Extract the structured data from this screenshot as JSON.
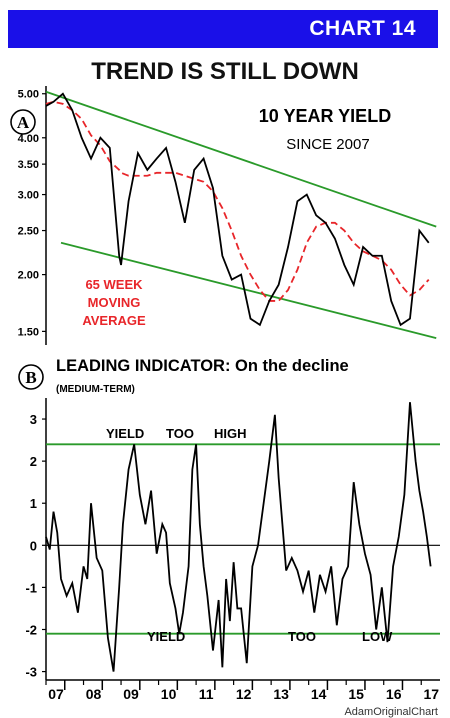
{
  "header": {
    "badge": "CHART 14",
    "title": "TREND IS STILL DOWN"
  },
  "colors": {
    "banner": "#1a10e8",
    "yield_line": "#000000",
    "moving_average": "#e8262a",
    "trend_lines": "#2a9a2a",
    "annotation_red": "#e8262a"
  },
  "chart_data": [
    {
      "type": "line",
      "panel_marker": "A",
      "title": "10 YEAR YIELD",
      "subtitle": "SINCE 2007",
      "yscale": "log",
      "ylim": [
        1.4,
        5.2
      ],
      "yticks": [
        "5.00",
        "4.00",
        "3.50",
        "3.00",
        "2.50",
        "2.00",
        "1.50"
      ],
      "xlim": [
        2007,
        2017.5
      ],
      "x": [
        2007.0,
        2007.2,
        2007.45,
        2007.7,
        2007.95,
        2008.2,
        2008.45,
        2008.7,
        2008.95,
        2009.0,
        2009.2,
        2009.45,
        2009.7,
        2009.95,
        2010.2,
        2010.45,
        2010.7,
        2010.95,
        2011.2,
        2011.45,
        2011.7,
        2011.95,
        2012.2,
        2012.45,
        2012.7,
        2012.95,
        2013.2,
        2013.45,
        2013.7,
        2013.95,
        2014.2,
        2014.45,
        2014.7,
        2014.95,
        2015.2,
        2015.45,
        2015.7,
        2015.95,
        2016.2,
        2016.45,
        2016.7,
        2016.95,
        2017.2
      ],
      "series": [
        {
          "values": [
            4.7,
            4.8,
            5.0,
            4.6,
            4.0,
            3.6,
            4.0,
            3.8,
            2.2,
            2.1,
            2.9,
            3.7,
            3.4,
            3.6,
            3.8,
            3.2,
            2.6,
            3.4,
            3.6,
            3.1,
            2.2,
            1.95,
            2.0,
            1.6,
            1.55,
            1.75,
            1.9,
            2.3,
            2.9,
            3.0,
            2.7,
            2.6,
            2.4,
            2.1,
            1.9,
            2.3,
            2.2,
            2.2,
            1.75,
            1.55,
            1.6,
            2.5,
            2.35
          ]
        },
        {
          "name": "65 WEEK MOVING AVERAGE",
          "values": [
            4.75,
            4.8,
            4.75,
            4.6,
            4.4,
            4.05,
            3.85,
            3.55,
            3.4,
            3.35,
            3.3,
            3.3,
            3.3,
            3.35,
            3.35,
            3.35,
            3.3,
            3.25,
            3.2,
            3.05,
            2.8,
            2.5,
            2.2,
            2.0,
            1.85,
            1.75,
            1.75,
            1.85,
            2.05,
            2.35,
            2.55,
            2.6,
            2.6,
            2.5,
            2.35,
            2.25,
            2.2,
            2.15,
            2.05,
            1.9,
            1.8,
            1.85,
            1.95
          ]
        }
      ],
      "trend_channel": {
        "upper": [
          [
            2007,
            5.05
          ],
          [
            2017.4,
            2.55
          ]
        ],
        "lower": [
          [
            2007.4,
            2.35
          ],
          [
            2017.4,
            1.45
          ]
        ]
      },
      "annotations": [
        "65 WEEK",
        "MOVING",
        "AVERAGE"
      ]
    },
    {
      "type": "line",
      "panel_marker": "B",
      "title": "LEADING INDICATOR: On the decline",
      "subtitle": "(MEDIUM-TERM)",
      "ylim": [
        -3.2,
        3.5
      ],
      "yticks": [
        "3",
        "2",
        "1",
        "0",
        "-1",
        "-2",
        "-3"
      ],
      "xlim": [
        2007,
        2017.5
      ],
      "x": [
        2007.0,
        2007.1,
        2007.2,
        2007.3,
        2007.4,
        2007.55,
        2007.7,
        2007.85,
        2008.0,
        2008.1,
        2008.2,
        2008.35,
        2008.5,
        2008.65,
        2008.8,
        2008.95,
        2009.05,
        2009.2,
        2009.35,
        2009.5,
        2009.65,
        2009.8,
        2009.95,
        2010.1,
        2010.2,
        2010.3,
        2010.45,
        2010.55,
        2010.65,
        2010.8,
        2010.9,
        2011.0,
        2011.1,
        2011.2,
        2011.3,
        2011.45,
        2011.6,
        2011.7,
        2011.8,
        2011.9,
        2012.0,
        2012.1,
        2012.2,
        2012.35,
        2012.5,
        2012.65,
        2012.8,
        2012.95,
        2013.1,
        2013.2,
        2013.3,
        2013.4,
        2013.55,
        2013.7,
        2013.85,
        2014.0,
        2014.15,
        2014.3,
        2014.45,
        2014.6,
        2014.75,
        2014.9,
        2015.05,
        2015.2,
        2015.35,
        2015.5,
        2015.65,
        2015.8,
        2015.95,
        2016.1,
        2016.25,
        2016.4,
        2016.55,
        2016.7,
        2016.85,
        2016.95,
        2017.05,
        2017.15,
        2017.25
      ],
      "series": [
        {
          "name": "LEADING INDICATOR",
          "values": [
            0.2,
            -0.1,
            0.8,
            0.3,
            -0.8,
            -1.2,
            -0.9,
            -1.6,
            -0.5,
            -0.8,
            1.0,
            -0.3,
            -0.6,
            -2.2,
            -3.0,
            -1.0,
            0.5,
            1.8,
            2.4,
            1.2,
            0.5,
            1.3,
            -0.2,
            0.5,
            0.3,
            -0.9,
            -1.5,
            -2.1,
            -1.6,
            -0.5,
            1.8,
            2.4,
            0.5,
            -0.5,
            -1.2,
            -2.5,
            -1.3,
            -2.9,
            -0.8,
            -1.8,
            -0.4,
            -1.5,
            -1.5,
            -2.8,
            -0.5,
            0.0,
            1.0,
            2.0,
            3.1,
            1.6,
            0.5,
            -0.6,
            -0.3,
            -0.6,
            -1.1,
            -0.6,
            -1.6,
            -0.7,
            -1.1,
            -0.5,
            -1.9,
            -0.8,
            -0.5,
            1.5,
            0.5,
            -0.2,
            -0.7,
            -2.0,
            -1.0,
            -2.3,
            -0.5,
            0.2,
            1.2,
            3.4,
            2.0,
            1.3,
            0.8,
            0.2,
            -0.5
          ]
        }
      ],
      "reference_lines": [
        2.4,
        -2.1
      ],
      "annotations_top": [
        "YIELD",
        "TOO",
        "HIGH"
      ],
      "annotations_bottom": [
        "YIELD",
        "TOO",
        "LOW"
      ],
      "xticks": [
        "07",
        "08",
        "09",
        "10",
        "11",
        "12",
        "13",
        "14",
        "15",
        "16",
        "17"
      ]
    }
  ],
  "footer": "AdamOriginalChart"
}
